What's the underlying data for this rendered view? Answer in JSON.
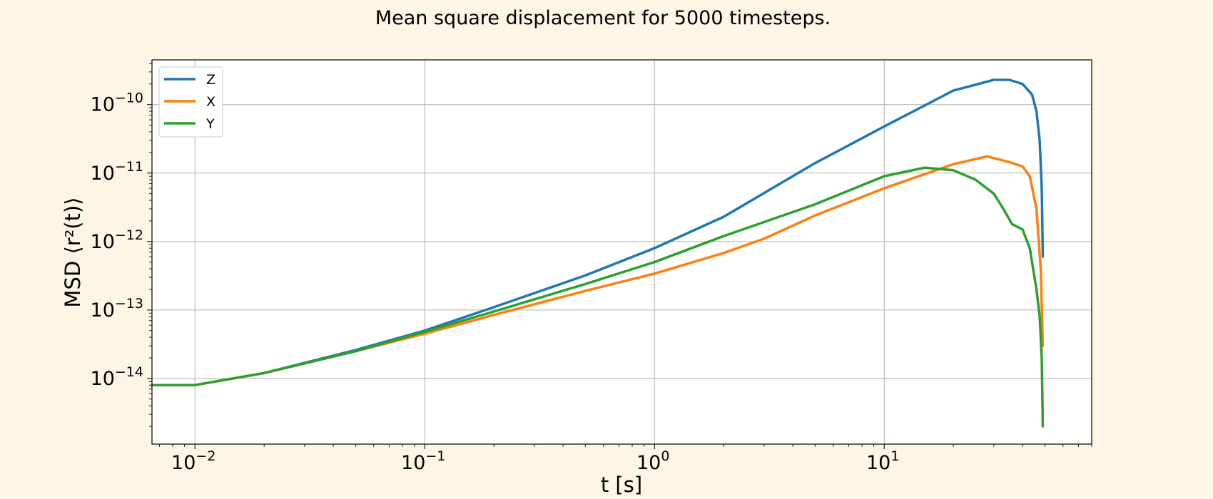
{
  "chart_data": {
    "type": "line",
    "title": "Mean square displacement for 5000 timesteps.",
    "xlabel": "t [s]",
    "ylabel": "MSD ⟨r²(t)⟩",
    "x_scale": "log",
    "y_scale": "log",
    "xlim": [
      0.0065,
      80
    ],
    "ylim": [
      1.1e-15,
      4.5e-10
    ],
    "x_ticks": [
      {
        "base": "10",
        "exp": "−2",
        "value": 0.01
      },
      {
        "base": "10",
        "exp": "−1",
        "value": 0.1
      },
      {
        "base": "10",
        "exp": "0",
        "value": 1
      },
      {
        "base": "10",
        "exp": "1",
        "value": 10
      }
    ],
    "y_ticks": [
      {
        "base": "10",
        "exp": "−14",
        "value": 1e-14
      },
      {
        "base": "10",
        "exp": "−13",
        "value": 1e-13
      },
      {
        "base": "10",
        "exp": "−12",
        "value": 1e-12
      },
      {
        "base": "10",
        "exp": "−11",
        "value": 1e-11
      },
      {
        "base": "10",
        "exp": "−10",
        "value": 1e-10
      }
    ],
    "grid": true,
    "legend_position": "top-left",
    "series": [
      {
        "name": "Z",
        "color": "#1f77b4",
        "points": [
          [
            0.0065,
            8e-15
          ],
          [
            0.01,
            8e-15
          ],
          [
            0.02,
            1.2e-14
          ],
          [
            0.05,
            2.6e-14
          ],
          [
            0.1,
            5e-14
          ],
          [
            0.2,
            1.1e-13
          ],
          [
            0.5,
            3.2e-13
          ],
          [
            1,
            8e-13
          ],
          [
            2,
            2.3e-12
          ],
          [
            5,
            1.4e-11
          ],
          [
            10,
            4.8e-11
          ],
          [
            20,
            1.6e-10
          ],
          [
            30,
            2.3e-10
          ],
          [
            35,
            2.3e-10
          ],
          [
            40,
            2e-10
          ],
          [
            44,
            1.4e-10
          ],
          [
            46,
            8e-11
          ],
          [
            47.5,
            3e-11
          ],
          [
            48.5,
            6e-12
          ],
          [
            49,
            6e-13
          ]
        ]
      },
      {
        "name": "X",
        "color": "#ff7f0e",
        "points": [
          [
            0.0065,
            8e-15
          ],
          [
            0.01,
            8e-15
          ],
          [
            0.02,
            1.2e-14
          ],
          [
            0.05,
            2.5e-14
          ],
          [
            0.1,
            4.5e-14
          ],
          [
            0.2,
            8.5e-14
          ],
          [
            0.5,
            1.9e-13
          ],
          [
            1,
            3.4e-13
          ],
          [
            2,
            6.8e-13
          ],
          [
            3,
            1.1e-12
          ],
          [
            5,
            2.4e-12
          ],
          [
            10,
            6e-12
          ],
          [
            20,
            1.35e-11
          ],
          [
            28,
            1.75e-11
          ],
          [
            35,
            1.45e-11
          ],
          [
            40,
            1.25e-11
          ],
          [
            43,
            9e-12
          ],
          [
            46,
            3e-12
          ],
          [
            48,
            4e-13
          ],
          [
            49,
            3e-14
          ]
        ]
      },
      {
        "name": "Y",
        "color": "#2ca02c",
        "points": [
          [
            0.0065,
            8e-15
          ],
          [
            0.01,
            8e-15
          ],
          [
            0.02,
            1.2e-14
          ],
          [
            0.05,
            2.5e-14
          ],
          [
            0.1,
            4.8e-14
          ],
          [
            0.2,
            9.5e-14
          ],
          [
            0.5,
            2.4e-13
          ],
          [
            1,
            5e-13
          ],
          [
            2,
            1.2e-12
          ],
          [
            5,
            3.5e-12
          ],
          [
            10,
            9e-12
          ],
          [
            15,
            1.2e-11
          ],
          [
            20,
            1.1e-11
          ],
          [
            25,
            8e-12
          ],
          [
            30,
            5e-12
          ],
          [
            33,
            3e-12
          ],
          [
            36,
            1.8e-12
          ],
          [
            40,
            1.5e-12
          ],
          [
            43,
            8e-13
          ],
          [
            46,
            2e-13
          ],
          [
            47.5,
            8e-14
          ],
          [
            48.5,
            2e-14
          ],
          [
            49,
            2e-15
          ]
        ]
      }
    ]
  }
}
